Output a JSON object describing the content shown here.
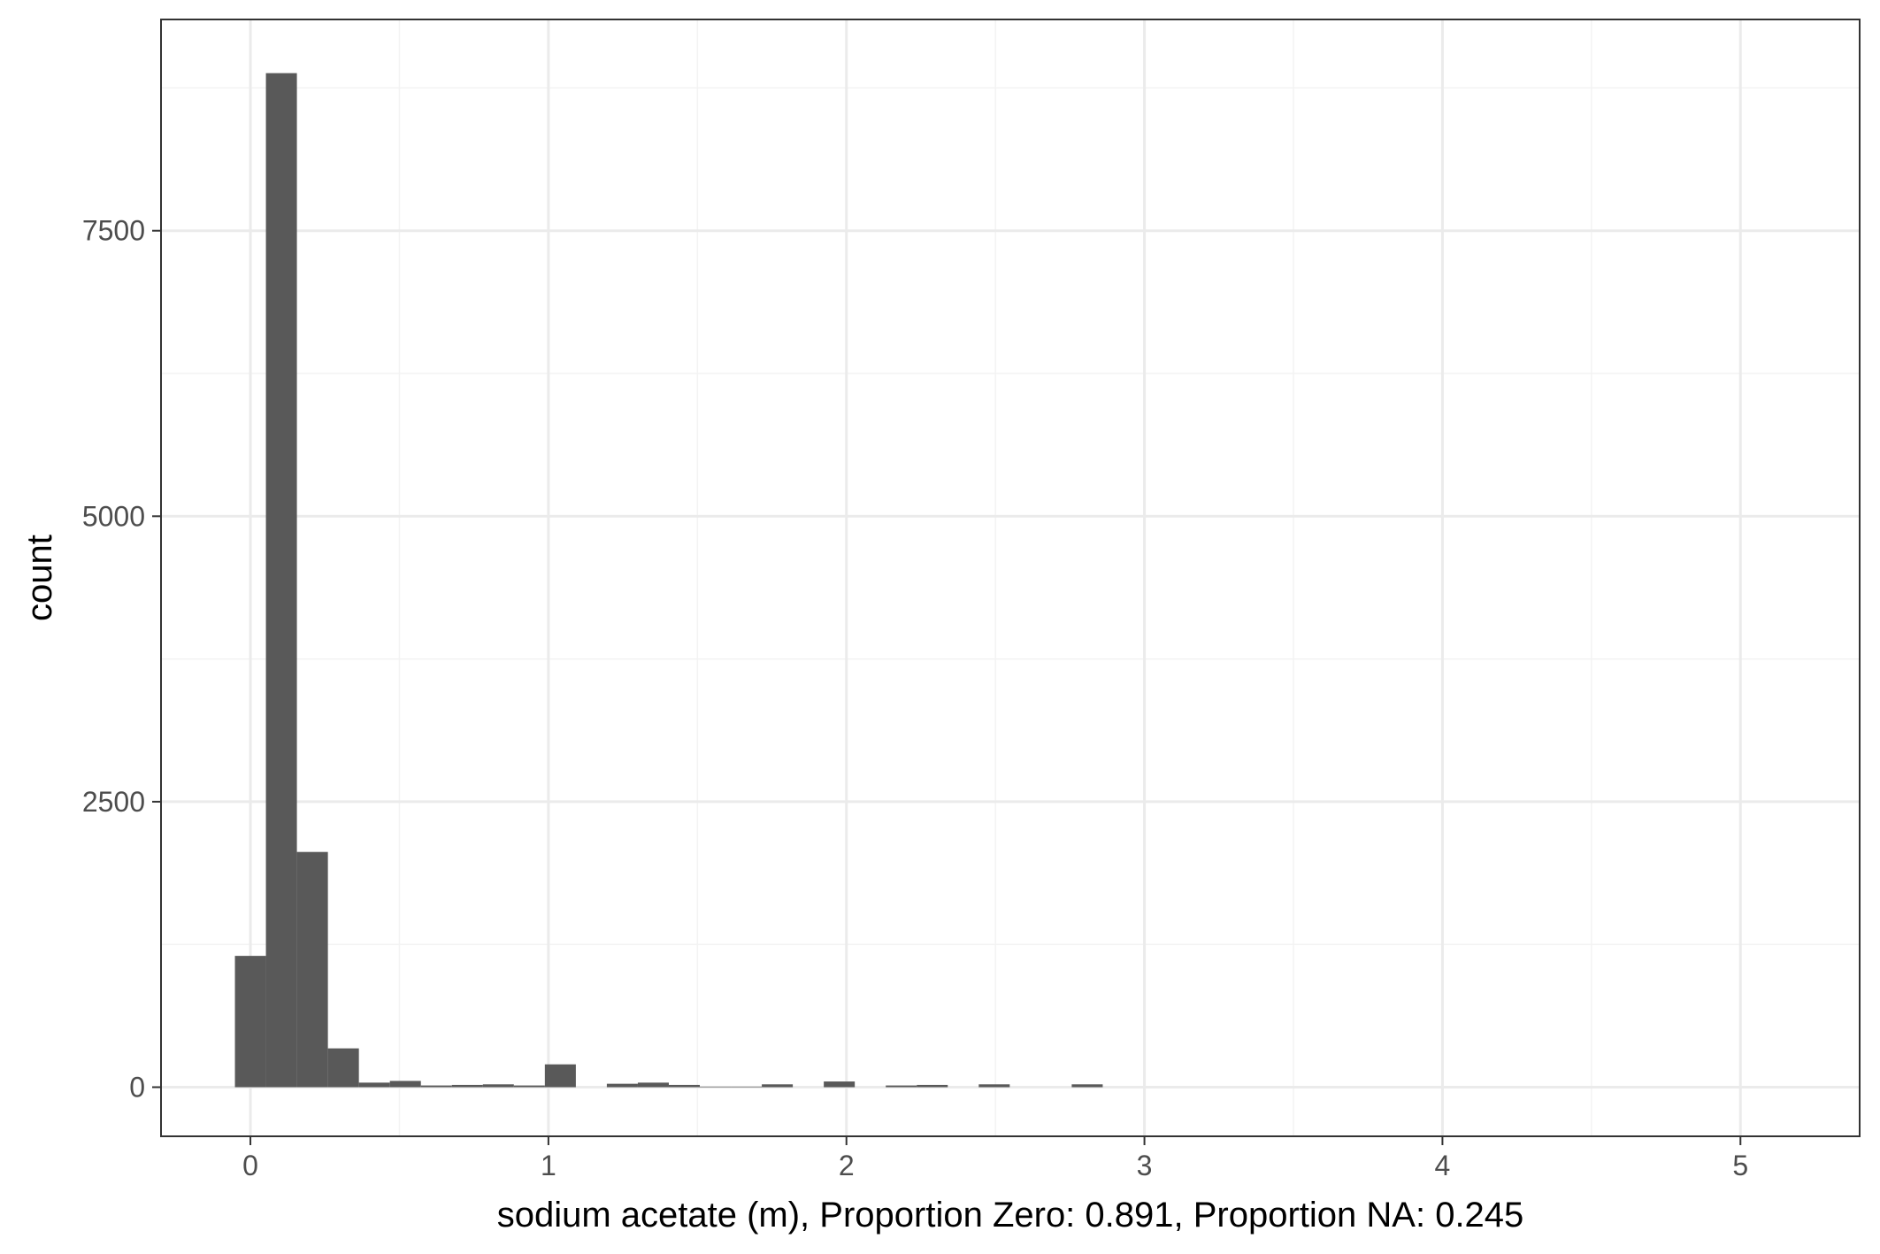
{
  "chart_data": {
    "type": "bar",
    "subtype": "histogram",
    "title": "",
    "xlabel": "sodium acetate (m), Proportion Zero: 0.891, Proportion NA: 0.245",
    "ylabel": "count",
    "xlim": [
      -0.3,
      5.4
    ],
    "ylim": [
      -430,
      9350
    ],
    "x_ticks": [
      0,
      1,
      2,
      3,
      4,
      5
    ],
    "x_tick_labels": [
      "0",
      "1",
      "2",
      "3",
      "4",
      "5"
    ],
    "y_ticks": [
      0,
      2500,
      5000,
      7500
    ],
    "y_tick_labels": [
      "0",
      "2500",
      "5000",
      "7500"
    ],
    "grid": true,
    "legend": "none",
    "bin_width": 0.104,
    "bins": [
      {
        "x0": -0.052,
        "x1": 0.052,
        "count": 1150
      },
      {
        "x0": 0.052,
        "x1": 0.156,
        "count": 8880
      },
      {
        "x0": 0.156,
        "x1": 0.26,
        "count": 2060
      },
      {
        "x0": 0.26,
        "x1": 0.364,
        "count": 340
      },
      {
        "x0": 0.364,
        "x1": 0.468,
        "count": 40
      },
      {
        "x0": 0.468,
        "x1": 0.572,
        "count": 55
      },
      {
        "x0": 0.572,
        "x1": 0.676,
        "count": 15
      },
      {
        "x0": 0.676,
        "x1": 0.78,
        "count": 20
      },
      {
        "x0": 0.78,
        "x1": 0.884,
        "count": 25
      },
      {
        "x0": 0.884,
        "x1": 0.988,
        "count": 15
      },
      {
        "x0": 0.988,
        "x1": 1.092,
        "count": 200
      },
      {
        "x0": 1.092,
        "x1": 1.196,
        "count": 0
      },
      {
        "x0": 1.196,
        "x1": 1.3,
        "count": 30
      },
      {
        "x0": 1.3,
        "x1": 1.404,
        "count": 40
      },
      {
        "x0": 1.404,
        "x1": 1.508,
        "count": 20
      },
      {
        "x0": 1.508,
        "x1": 1.612,
        "count": 5
      },
      {
        "x0": 1.612,
        "x1": 1.716,
        "count": 5
      },
      {
        "x0": 1.716,
        "x1": 1.82,
        "count": 25
      },
      {
        "x0": 1.82,
        "x1": 1.924,
        "count": 0
      },
      {
        "x0": 1.924,
        "x1": 2.028,
        "count": 50
      },
      {
        "x0": 2.028,
        "x1": 2.132,
        "count": 0
      },
      {
        "x0": 2.132,
        "x1": 2.236,
        "count": 15
      },
      {
        "x0": 2.236,
        "x1": 2.34,
        "count": 20
      },
      {
        "x0": 2.34,
        "x1": 2.444,
        "count": 0
      },
      {
        "x0": 2.444,
        "x1": 2.548,
        "count": 25
      },
      {
        "x0": 2.548,
        "x1": 2.652,
        "count": 0
      },
      {
        "x0": 2.652,
        "x1": 2.756,
        "count": 0
      },
      {
        "x0": 2.756,
        "x1": 2.86,
        "count": 25
      }
    ],
    "colors": {
      "bar": "#595959",
      "panel_border": "#333333",
      "grid_major": "#ebebeb",
      "grid_minor": "#f3f3f3",
      "tick_label": "#4d4d4d",
      "axis_title": "#000000"
    }
  }
}
